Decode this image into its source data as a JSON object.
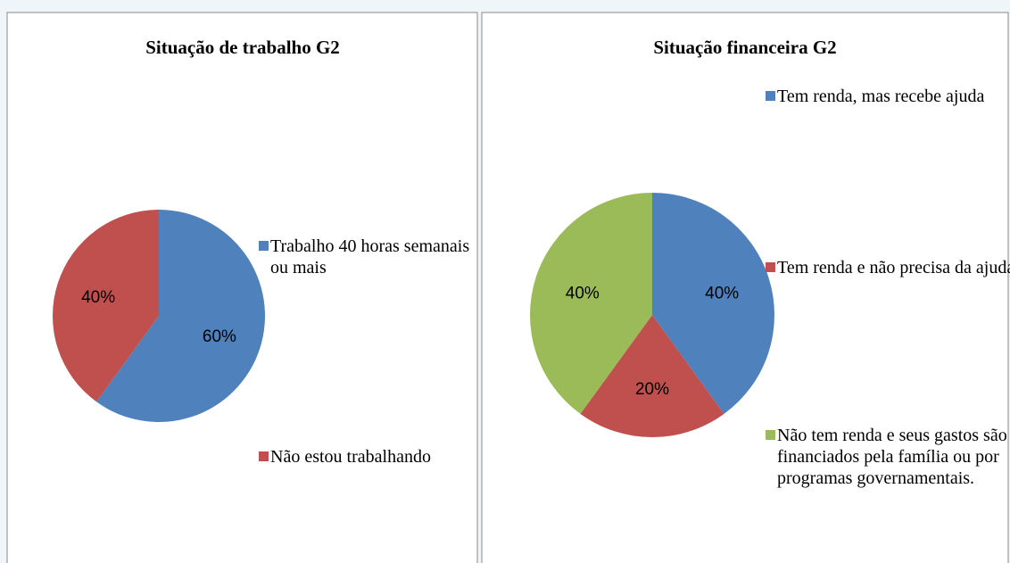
{
  "chart_data": [
    {
      "type": "pie",
      "title": "Situação de trabalho G2",
      "categories": [
        "Trabalho 40 horas semanais ou mais",
        "Não estou trabalhando"
      ],
      "values": [
        60,
        40
      ],
      "value_labels": [
        "60%",
        "40%"
      ],
      "colors": [
        "#4f81bd",
        "#c0504d"
      ],
      "legend": "right"
    },
    {
      "type": "pie",
      "title": "Situação financeira G2",
      "categories": [
        "Tem renda, mas recebe ajuda",
        "Tem renda e não precisa da ajuda",
        "Não tem renda e seus gastos são financiados pela família ou por programas governamentais."
      ],
      "values": [
        40,
        20,
        40
      ],
      "value_labels": [
        "40%",
        "20%",
        "40%"
      ],
      "colors": [
        "#4f81bd",
        "#c0504d",
        "#9bbb59"
      ],
      "legend": "right"
    }
  ]
}
